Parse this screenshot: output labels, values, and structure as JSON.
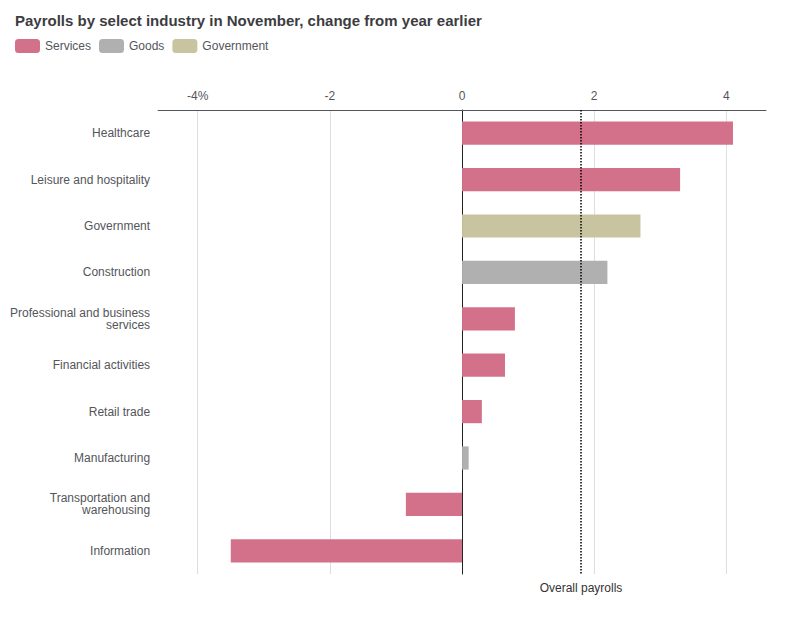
{
  "chart_data": {
    "type": "bar",
    "orientation": "horizontal",
    "title": "Payrolls by select industry in November, change from year earlier",
    "categories": [
      "Healthcare",
      "Leisure and hospitality",
      "Government",
      "Construction",
      "Professional and business\nservices",
      "Financial activities",
      "Retail trade",
      "Manufacturing",
      "Transportation and\nwarehousing",
      "Information"
    ],
    "series": [
      {
        "name": "Services",
        "color": "#d4718a",
        "values": [
          4.1,
          3.3,
          null,
          null,
          0.8,
          0.65,
          0.3,
          null,
          -0.85,
          -3.5
        ]
      },
      {
        "name": "Goods",
        "color": "#b0b0b0",
        "values": [
          null,
          null,
          null,
          2.2,
          null,
          null,
          null,
          0.1,
          null,
          null
        ]
      },
      {
        "name": "Government",
        "color": "#c8c4a0",
        "values": [
          null,
          null,
          2.7,
          null,
          null,
          null,
          null,
          null,
          null,
          null
        ]
      }
    ],
    "xlim": [
      -4.6,
      4.6
    ],
    "xticks": [
      {
        "value": -4,
        "label": "-4%"
      },
      -2,
      0,
      2,
      4
    ],
    "grid": true,
    "legend": "top-left",
    "annotations": [
      {
        "x": 1.8,
        "text": "Overall payrolls",
        "line_style": "dotted"
      }
    ]
  }
}
